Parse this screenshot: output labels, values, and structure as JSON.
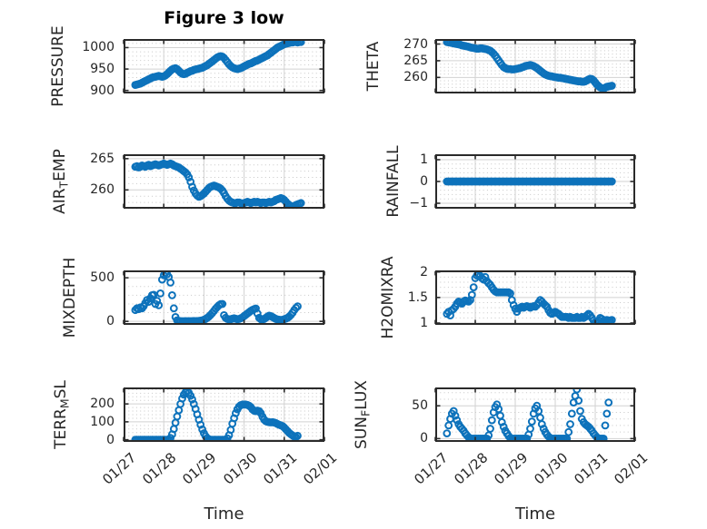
{
  "figure": {
    "title": "Figure 3 low",
    "marker_color": "#0d72bb",
    "box_color": "#2a2a2a",
    "major_grid_color": "#d2d2d2",
    "minor_grid_color": "#a9a9a9",
    "text_color": "#262626",
    "background": "#ffffff"
  },
  "xaxis": {
    "label": "Time",
    "tick_labels": [
      "01/27",
      "01/28",
      "01/29",
      "01/30",
      "01/31",
      "02/01"
    ],
    "xlim_hours": [
      0,
      120
    ],
    "major_tick_hours": 24
  },
  "chart_data": [
    {
      "type": "scatter",
      "id": "pressure",
      "ylabel": "PRESSURE",
      "ylabel_parts": [
        {
          "text": "PRESSURE"
        }
      ],
      "ylim": [
        893,
        1020
      ],
      "yticks": [
        900,
        950,
        1000
      ],
      "x_start_hour": 7,
      "x_step_hours": 1,
      "y": [
        913,
        914,
        915,
        916,
        918,
        920,
        922,
        924,
        926,
        928,
        930,
        931,
        932,
        933,
        934,
        933,
        932,
        933,
        935,
        938,
        942,
        946,
        949,
        951,
        952,
        950,
        946,
        942,
        939,
        938,
        939,
        941,
        943,
        945,
        946,
        948,
        949,
        950,
        951,
        952,
        953,
        955,
        957,
        959,
        962,
        965,
        968,
        971,
        974,
        977,
        979,
        980,
        979,
        976,
        971,
        966,
        961,
        957,
        954,
        952,
        951,
        950,
        951,
        952,
        954,
        956,
        958,
        960,
        962,
        963,
        965,
        967,
        969,
        970,
        972,
        974,
        976,
        978,
        980,
        982,
        985,
        988,
        991,
        994,
        997,
        1000,
        1002,
        1004,
        1006,
        1008,
        1009,
        1010,
        1011,
        1012,
        1012,
        1013,
        1013,
        1012,
        1013,
        1013
      ]
    },
    {
      "type": "scatter",
      "id": "theta",
      "ylabel": "THETA",
      "ylabel_parts": [
        {
          "text": "THETA"
        }
      ],
      "ylim": [
        255.2,
        271.5
      ],
      "yticks": [
        260,
        265,
        270
      ],
      "x_start_hour": 7,
      "x_step_hours": 1,
      "y": [
        270.6,
        270.5,
        270.4,
        270.3,
        270.2,
        270.1,
        270,
        269.9,
        269.8,
        269.6,
        269.5,
        269.4,
        269.3,
        269.2,
        269,
        268.9,
        268.8,
        268.7,
        268.6,
        268.6,
        268.7,
        268.7,
        268.6,
        268.5,
        268.4,
        268.2,
        268,
        267.6,
        267.1,
        266.5,
        265.8,
        265.1,
        264.4,
        263.7,
        263.1,
        262.8,
        262.6,
        262.5,
        262.5,
        262.4,
        262.4,
        262.5,
        262.6,
        262.7,
        262.8,
        263,
        263.2,
        263.4,
        263.5,
        263.6,
        263.7,
        263.6,
        263.4,
        263.1,
        262.8,
        262.4,
        262,
        261.6,
        261.2,
        260.9,
        260.7,
        260.5,
        260.4,
        260.3,
        260.2,
        260.1,
        260,
        259.9,
        259.9,
        259.8,
        259.7,
        259.6,
        259.5,
        259.4,
        259.3,
        259.2,
        259.1,
        259,
        258.9,
        258.8,
        258.8,
        258.7,
        258.7,
        258.8,
        259.1,
        259.4,
        259.6,
        259.5,
        259.1,
        258.5,
        257.9,
        257.4,
        257,
        256.8,
        256.7,
        256.9,
        257.2,
        257.3,
        257.4,
        257.5
      ]
    },
    {
      "type": "scatter",
      "id": "air-temp",
      "ylabel": "AIR_TEMP",
      "ylabel_parts": [
        {
          "text": "AIR"
        },
        {
          "text": "T",
          "sub": true
        },
        {
          "text": "EMP"
        }
      ],
      "ylim": [
        257.0,
        265.7
      ],
      "yticks": [
        260,
        265
      ],
      "x_start_hour": 7,
      "x_step_hours": 1,
      "y": [
        263.7,
        263.8,
        263.6,
        263.7,
        263.9,
        263.8,
        263.7,
        263.9,
        264,
        263.8,
        263.9,
        264,
        264.1,
        264,
        263.9,
        264,
        264.1,
        264.2,
        264.1,
        264,
        264.1,
        264.2,
        264.1,
        263.9,
        263.8,
        263.7,
        263.6,
        263.4,
        263.2,
        263,
        262.8,
        262.5,
        262,
        261.3,
        260.5,
        259.9,
        259.4,
        259.1,
        258.9,
        259,
        259.2,
        259.4,
        259.7,
        260,
        260.3,
        260.5,
        260.6,
        260.7,
        260.6,
        260.5,
        260.4,
        260.2,
        259.9,
        259.5,
        259,
        258.6,
        258.3,
        258.1,
        258,
        257.9,
        257.9,
        258,
        258,
        257.9,
        257.8,
        257.9,
        258,
        258.1,
        258,
        257.9,
        258,
        258.1,
        258,
        258.1,
        258,
        257.9,
        258,
        258,
        257.9,
        258,
        258.1,
        258,
        258.1,
        258.2,
        258.4,
        258.5,
        258.6,
        258.7,
        258.6,
        258.4,
        258.1,
        257.8,
        257.6,
        257.4,
        257.3,
        257.4,
        257.6,
        257.7,
        257.8,
        257.9
      ]
    },
    {
      "type": "scatter",
      "id": "rainfall",
      "ylabel": "RAINFALL",
      "ylabel_parts": [
        {
          "text": "RAINFALL"
        }
      ],
      "ylim": [
        -1.25,
        1.25
      ],
      "yticks": [
        -1,
        0,
        1
      ],
      "x_start_hour": 7,
      "x_step_hours": 1,
      "y": [
        0,
        0,
        0,
        0,
        0,
        0,
        0,
        0,
        0,
        0,
        0,
        0,
        0,
        0,
        0,
        0,
        0,
        0,
        0,
        0,
        0,
        0,
        0,
        0,
        0,
        0,
        0,
        0,
        0,
        0,
        0,
        0,
        0,
        0,
        0,
        0,
        0,
        0,
        0,
        0,
        0,
        0,
        0,
        0,
        0,
        0,
        0,
        0,
        0,
        0,
        0,
        0,
        0,
        0,
        0,
        0,
        0,
        0,
        0,
        0,
        0,
        0,
        0,
        0,
        0,
        0,
        0,
        0,
        0,
        0,
        0,
        0,
        0,
        0,
        0,
        0,
        0,
        0,
        0,
        0,
        0,
        0,
        0,
        0,
        0,
        0,
        0,
        0,
        0,
        0,
        0,
        0,
        0,
        0,
        0,
        0,
        0,
        0,
        0,
        0
      ]
    },
    {
      "type": "scatter",
      "id": "mixdepth",
      "ylabel": "MIXDEPTH",
      "ylabel_parts": [
        {
          "text": "MIXDEPTH"
        }
      ],
      "ylim": [
        -40,
        585
      ],
      "yticks": [
        0,
        500
      ],
      "x_start_hour": 7,
      "x_step_hours": 1,
      "y": [
        130,
        150,
        140,
        160,
        150,
        175,
        210,
        245,
        225,
        265,
        300,
        305,
        200,
        235,
        185,
        320,
        480,
        530,
        555,
        540,
        510,
        445,
        300,
        150,
        50,
        12,
        5,
        3,
        2,
        2,
        3,
        2,
        3,
        2,
        3,
        4,
        3,
        4,
        5,
        8,
        12,
        18,
        28,
        40,
        55,
        75,
        95,
        120,
        145,
        165,
        185,
        198,
        200,
        70,
        40,
        28,
        22,
        25,
        30,
        35,
        30,
        25,
        28,
        35,
        45,
        60,
        75,
        90,
        105,
        120,
        132,
        140,
        148,
        90,
        40,
        25,
        20,
        28,
        40,
        55,
        65,
        60,
        50,
        38,
        28,
        22,
        18,
        15,
        18,
        25,
        32,
        40,
        55,
        75,
        100,
        130,
        155,
        172
      ]
    },
    {
      "type": "scatter",
      "id": "h2omixra",
      "ylabel": "H2OMIXRA",
      "ylabel_parts": [
        {
          "text": "H2OMIXRA"
        }
      ],
      "ylim": [
        0.965,
        2.03
      ],
      "yticks": [
        1,
        1.5,
        2
      ],
      "x_start_hour": 7,
      "x_step_hours": 1,
      "y": [
        1.18,
        1.22,
        1.15,
        1.25,
        1.28,
        1.32,
        1.38,
        1.42,
        1.4,
        1.38,
        1.42,
        1.44,
        1.43,
        1.42,
        1.45,
        1.55,
        1.7,
        1.88,
        1.93,
        1.95,
        1.92,
        1.88,
        1.85,
        1.9,
        1.82,
        1.78,
        1.75,
        1.7,
        1.65,
        1.62,
        1.6,
        1.6,
        1.6,
        1.6,
        1.6,
        1.6,
        1.6,
        1.6,
        1.58,
        1.45,
        1.35,
        1.28,
        1.22,
        1.28,
        1.3,
        1.32,
        1.3,
        1.32,
        1.33,
        1.32,
        1.3,
        1.32,
        1.33,
        1.32,
        1.35,
        1.4,
        1.45,
        1.42,
        1.38,
        1.35,
        1.32,
        1.25,
        1.2,
        1.18,
        1.2,
        1.22,
        1.2,
        1.18,
        1.15,
        1.12,
        1.12,
        1.12,
        1.12,
        1.1,
        1.12,
        1.1,
        1.1,
        1.1,
        1.12,
        1.1,
        1.1,
        1.12,
        1.1,
        1.12,
        1.15,
        1.18,
        1.15,
        1.1,
        1.05,
        1.02,
        1,
        1.05,
        1.1,
        1.08,
        1.05,
        1.05,
        1.06,
        1.05,
        1.05,
        1.06
      ]
    },
    {
      "type": "scatter",
      "id": "terr-msl",
      "ylabel": "TERR_MSL",
      "ylabel_parts": [
        {
          "text": "TERR"
        },
        {
          "text": "M",
          "sub": true
        },
        {
          "text": "SL"
        }
      ],
      "ylim": [
        -12,
        292
      ],
      "yticks": [
        0,
        100,
        200
      ],
      "x_start_hour": 7,
      "x_step_hours": 1,
      "y": [
        0,
        0,
        0,
        0,
        0,
        0,
        0,
        0,
        0,
        0,
        0,
        0,
        0,
        0,
        0,
        0,
        0,
        0,
        0,
        0,
        0,
        10,
        30,
        60,
        95,
        130,
        165,
        200,
        230,
        252,
        265,
        270,
        262,
        246,
        225,
        200,
        172,
        142,
        112,
        84,
        58,
        36,
        20,
        9,
        3,
        0,
        0,
        0,
        0,
        0,
        0,
        0,
        0,
        0,
        0,
        8,
        25,
        55,
        90,
        120,
        148,
        170,
        185,
        193,
        196,
        197,
        196,
        194,
        190,
        182,
        170,
        162,
        160,
        163,
        160,
        148,
        128,
        112,
        104,
        100,
        98,
        97,
        98,
        96,
        93,
        88,
        84,
        80,
        76,
        68,
        58,
        48,
        38,
        30,
        24,
        18,
        15,
        22
      ]
    },
    {
      "type": "scatter",
      "id": "sun-flux",
      "ylabel": "SUN_FLUX",
      "ylabel_parts": [
        {
          "text": "SUN"
        },
        {
          "text": "F",
          "sub": true
        },
        {
          "text": "LUX"
        }
      ],
      "ylim": [
        -5,
        78
      ],
      "yticks": [
        0,
        50
      ],
      "x_start_hour": 7,
      "x_step_hours": 1,
      "y": [
        8,
        20,
        30,
        38,
        42,
        35,
        28,
        22,
        18,
        15,
        12,
        8,
        5,
        2,
        0,
        0,
        0,
        0,
        0,
        0,
        0,
        0,
        0,
        0,
        0,
        5,
        15,
        28,
        40,
        48,
        52,
        45,
        35,
        25,
        18,
        12,
        8,
        4,
        1,
        0,
        0,
        0,
        0,
        0,
        0,
        0,
        0,
        0,
        0,
        6,
        15,
        26,
        38,
        46,
        50,
        42,
        32,
        22,
        15,
        10,
        6,
        3,
        1,
        0,
        0,
        0,
        0,
        0,
        0,
        0,
        0,
        0,
        0,
        10,
        22,
        38,
        55,
        65,
        75,
        58,
        42,
        30,
        25,
        22,
        20,
        18,
        15,
        12,
        8,
        5,
        2,
        0,
        0,
        0,
        0,
        20,
        38,
        55
      ]
    }
  ]
}
